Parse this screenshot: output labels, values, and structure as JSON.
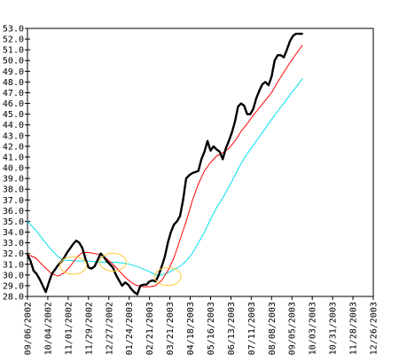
{
  "chart_data": {
    "type": "line",
    "title": "",
    "xlabel": "",
    "ylabel": "",
    "ylim": [
      28,
      53
    ],
    "yticks": [
      28.0,
      29.0,
      30.0,
      31.0,
      32.0,
      33.0,
      34.0,
      35.0,
      36.0,
      37.0,
      38.0,
      39.0,
      40.0,
      41.0,
      42.0,
      43.0,
      44.0,
      45.0,
      46.0,
      47.0,
      48.0,
      49.0,
      50.0,
      51.0,
      52.0,
      53.0
    ],
    "ytick_labels": [
      "28.0",
      "29.0",
      "30.0",
      "31.0",
      "32.0",
      "33.0",
      "34.0",
      "35.0",
      "36.0",
      "37.0",
      "38.0",
      "39.0",
      "40.0",
      "41.0",
      "42.0",
      "43.0",
      "44.0",
      "45.0",
      "46.0",
      "47.0",
      "48.0",
      "49.0",
      "50.0",
      "51.0",
      "52.0",
      "53.0"
    ],
    "x_tick_labels": [
      "09/06/2002",
      "10/04/2002",
      "11/01/2002",
      "11/29/2002",
      "12/27/2002",
      "01/24/2003",
      "02/21/2003",
      "03/21/2003",
      "04/18/2003",
      "05/16/2003",
      "06/13/2003",
      "07/11/2003",
      "08/08/2003",
      "09/05/2003",
      "10/03/2003",
      "10/31/2003",
      "11/28/2003",
      "12/26/2003"
    ],
    "grid": false,
    "legend": "none",
    "series": [
      {
        "color": "#000000",
        "width": 2.4,
        "values": [
          [
            0,
            31.9
          ],
          [
            0.15,
            31.3
          ],
          [
            0.3,
            30.4
          ],
          [
            0.45,
            30.1
          ],
          [
            0.6,
            29.6
          ],
          [
            0.75,
            29.0
          ],
          [
            0.9,
            28.4
          ],
          [
            1.05,
            29.3
          ],
          [
            1.2,
            30.1
          ],
          [
            1.35,
            30.5
          ],
          [
            1.5,
            30.9
          ],
          [
            1.65,
            31.2
          ],
          [
            1.8,
            31.6
          ],
          [
            1.95,
            32.1
          ],
          [
            2.1,
            32.5
          ],
          [
            2.25,
            32.9
          ],
          [
            2.4,
            33.2
          ],
          [
            2.55,
            33.0
          ],
          [
            2.7,
            32.5
          ],
          [
            2.85,
            31.5
          ],
          [
            3.0,
            30.7
          ],
          [
            3.15,
            30.6
          ],
          [
            3.3,
            30.8
          ],
          [
            3.45,
            31.4
          ],
          [
            3.6,
            32.0
          ],
          [
            3.75,
            31.7
          ],
          [
            3.9,
            31.3
          ],
          [
            4.05,
            31.0
          ],
          [
            4.2,
            30.7
          ],
          [
            4.35,
            30.0
          ],
          [
            4.5,
            29.5
          ],
          [
            4.65,
            29.0
          ],
          [
            4.8,
            29.3
          ],
          [
            4.95,
            29.1
          ],
          [
            5.1,
            28.7
          ],
          [
            5.25,
            28.4
          ],
          [
            5.4,
            28.2
          ],
          [
            5.55,
            29.0
          ],
          [
            5.7,
            29.1
          ],
          [
            5.85,
            29.1
          ],
          [
            6.0,
            29.4
          ],
          [
            6.15,
            29.5
          ],
          [
            6.3,
            29.4
          ],
          [
            6.45,
            30.0
          ],
          [
            6.6,
            30.8
          ],
          [
            6.75,
            31.7
          ],
          [
            6.9,
            33.0
          ],
          [
            7.05,
            34.0
          ],
          [
            7.2,
            34.7
          ],
          [
            7.35,
            35.0
          ],
          [
            7.5,
            35.5
          ],
          [
            7.65,
            37.0
          ],
          [
            7.8,
            39.0
          ],
          [
            7.95,
            39.3
          ],
          [
            8.1,
            39.5
          ],
          [
            8.25,
            39.6
          ],
          [
            8.4,
            39.7
          ],
          [
            8.55,
            40.8
          ],
          [
            8.7,
            41.5
          ],
          [
            8.85,
            42.5
          ],
          [
            9.0,
            41.6
          ],
          [
            9.15,
            42.0
          ],
          [
            9.3,
            41.7
          ],
          [
            9.45,
            41.5
          ],
          [
            9.6,
            40.8
          ],
          [
            9.75,
            41.8
          ],
          [
            9.9,
            42.5
          ],
          [
            10.05,
            43.3
          ],
          [
            10.2,
            44.3
          ],
          [
            10.35,
            45.7
          ],
          [
            10.5,
            46.0
          ],
          [
            10.65,
            45.8
          ],
          [
            10.8,
            45.0
          ],
          [
            10.95,
            45.0
          ],
          [
            11.1,
            45.5
          ],
          [
            11.25,
            46.5
          ],
          [
            11.4,
            47.2
          ],
          [
            11.55,
            47.8
          ],
          [
            11.7,
            48.0
          ],
          [
            11.85,
            47.7
          ],
          [
            12.0,
            48.5
          ],
          [
            12.15,
            50.0
          ],
          [
            12.3,
            50.5
          ],
          [
            12.45,
            50.5
          ],
          [
            12.6,
            50.3
          ],
          [
            12.75,
            51.0
          ],
          [
            12.9,
            51.8
          ],
          [
            13.05,
            52.3
          ],
          [
            13.2,
            52.5
          ],
          [
            13.35,
            52.5
          ],
          [
            13.5,
            52.5
          ]
        ]
      },
      {
        "color": "#ff0000",
        "width": 1,
        "values": [
          [
            0,
            31.9
          ],
          [
            0.4,
            31.6
          ],
          [
            0.8,
            30.8
          ],
          [
            1.2,
            30.1
          ],
          [
            1.5,
            29.9
          ],
          [
            1.8,
            30.2
          ],
          [
            2.1,
            30.8
          ],
          [
            2.4,
            31.6
          ],
          [
            2.7,
            32.1
          ],
          [
            3.0,
            32.1
          ],
          [
            3.3,
            32.0
          ],
          [
            3.6,
            31.9
          ],
          [
            3.9,
            31.5
          ],
          [
            4.2,
            31.0
          ],
          [
            4.5,
            30.4
          ],
          [
            4.8,
            29.8
          ],
          [
            5.1,
            29.3
          ],
          [
            5.4,
            29.0
          ],
          [
            5.7,
            28.9
          ],
          [
            6.0,
            28.9
          ],
          [
            6.3,
            29.0
          ],
          [
            6.6,
            29.5
          ],
          [
            6.9,
            30.4
          ],
          [
            7.2,
            31.6
          ],
          [
            7.5,
            33.3
          ],
          [
            7.8,
            35.0
          ],
          [
            8.1,
            36.9
          ],
          [
            8.4,
            38.5
          ],
          [
            8.7,
            39.7
          ],
          [
            9.0,
            40.5
          ],
          [
            9.3,
            41.1
          ],
          [
            9.6,
            41.4
          ],
          [
            9.9,
            41.8
          ],
          [
            10.2,
            42.5
          ],
          [
            10.5,
            43.4
          ],
          [
            10.8,
            44.1
          ],
          [
            11.1,
            44.9
          ],
          [
            11.4,
            45.6
          ],
          [
            11.7,
            46.3
          ],
          [
            12.0,
            47.0
          ],
          [
            12.3,
            48.0
          ],
          [
            12.6,
            48.9
          ],
          [
            12.9,
            49.8
          ],
          [
            13.2,
            50.6
          ],
          [
            13.5,
            51.4
          ]
        ]
      },
      {
        "color": "#00e0f0",
        "width": 1,
        "values": [
          [
            0,
            35.0
          ],
          [
            0.4,
            34.2
          ],
          [
            0.8,
            33.2
          ],
          [
            1.2,
            32.3
          ],
          [
            1.5,
            31.7
          ],
          [
            1.8,
            31.4
          ],
          [
            2.4,
            31.3
          ],
          [
            3.0,
            31.3
          ],
          [
            3.6,
            31.2
          ],
          [
            4.2,
            31.2
          ],
          [
            4.8,
            31.1
          ],
          [
            5.4,
            30.8
          ],
          [
            6.0,
            30.3
          ],
          [
            6.3,
            30.0
          ],
          [
            6.6,
            30.0
          ],
          [
            6.9,
            30.2
          ],
          [
            7.2,
            30.5
          ],
          [
            7.5,
            30.8
          ],
          [
            7.8,
            31.3
          ],
          [
            8.1,
            32.0
          ],
          [
            8.4,
            33.0
          ],
          [
            8.7,
            34.0
          ],
          [
            9.0,
            35.2
          ],
          [
            9.3,
            36.3
          ],
          [
            9.6,
            37.2
          ],
          [
            9.9,
            38.2
          ],
          [
            10.2,
            39.3
          ],
          [
            10.5,
            40.4
          ],
          [
            10.8,
            41.3
          ],
          [
            11.1,
            42.1
          ],
          [
            11.4,
            42.9
          ],
          [
            11.7,
            43.7
          ],
          [
            12.0,
            44.5
          ],
          [
            12.3,
            45.3
          ],
          [
            12.6,
            46.0
          ],
          [
            12.9,
            46.8
          ],
          [
            13.2,
            47.5
          ],
          [
            13.5,
            48.3
          ]
        ]
      }
    ],
    "annotations": [
      {
        "type": "ellipse",
        "x": 2.25,
        "y": 30.9,
        "color": "#ffcc33"
      },
      {
        "type": "ellipse",
        "x": 4.2,
        "y": 31.2,
        "color": "#ffcc33"
      },
      {
        "type": "ellipse",
        "x": 6.9,
        "y": 29.85,
        "color": "#ffcc33"
      }
    ]
  }
}
